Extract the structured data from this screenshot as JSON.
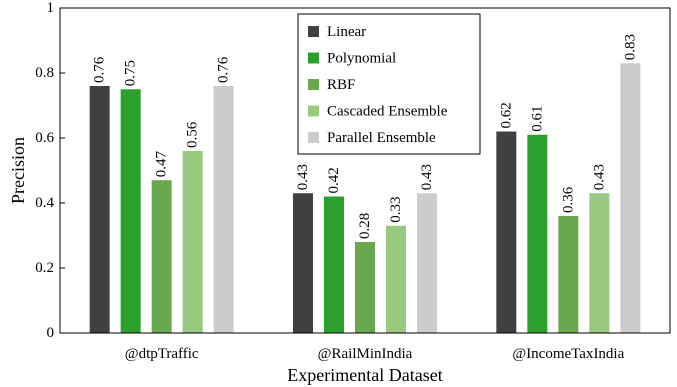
{
  "chart_data": {
    "type": "bar",
    "title": "",
    "xlabel": "Experimental Dataset",
    "ylabel": "Precision",
    "ylim": [
      0,
      1
    ],
    "yticks": [
      0,
      0.2,
      0.4,
      0.6,
      0.8,
      1
    ],
    "ytick_labels": [
      "0",
      "0.2",
      "0.4",
      "0.6",
      "0.8",
      "1"
    ],
    "categories": [
      "@dtpTraffic",
      "@RailMinIndia",
      "@IncomeTaxIndia"
    ],
    "series": [
      {
        "name": "Linear",
        "color": "#404040",
        "values": [
          0.76,
          0.43,
          0.62
        ],
        "labels": [
          "0.76",
          "0.43",
          "0.62"
        ]
      },
      {
        "name": "Polynomial",
        "color": "#2ca02c",
        "values": [
          0.75,
          0.42,
          0.61
        ],
        "labels": [
          "0.75",
          "0.42",
          "0.61"
        ]
      },
      {
        "name": "RBF",
        "color": "#6aa84f",
        "values": [
          0.47,
          0.28,
          0.36
        ],
        "labels": [
          "0.47",
          "0.28",
          "0.36"
        ]
      },
      {
        "name": "Cascaded Ensemble",
        "color": "#98c97f",
        "values": [
          0.56,
          0.33,
          0.43
        ],
        "labels": [
          "0.56",
          "0.33",
          "0.43"
        ]
      },
      {
        "name": "Parallel Ensemble",
        "color": "#cccccc",
        "values": [
          0.76,
          0.43,
          0.83
        ],
        "labels": [
          "0.76",
          "0.43",
          "0.83"
        ]
      }
    ],
    "legend_position": "top-center",
    "grid": false
  }
}
